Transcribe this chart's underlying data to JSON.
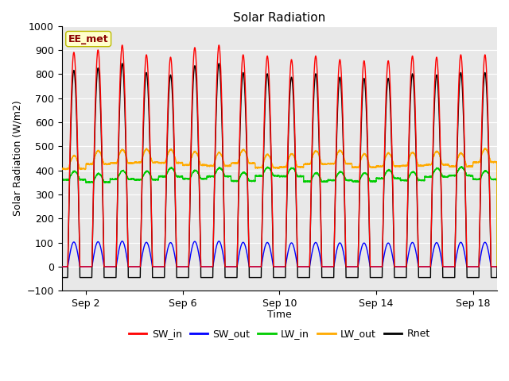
{
  "title": "Solar Radiation",
  "xlabel": "Time",
  "ylabel": "Solar Radiation (W/m2)",
  "ylim": [
    -100,
    1000
  ],
  "yticks": [
    -100,
    0,
    100,
    200,
    300,
    400,
    500,
    600,
    700,
    800,
    900,
    1000
  ],
  "xtick_labels": [
    "Sep 2",
    "Sep 6",
    "Sep 10",
    "Sep 14",
    "Sep 18"
  ],
  "xtick_positions": [
    1,
    5,
    9,
    13,
    17
  ],
  "station_label": "EE_met",
  "background_color": "#e8e8e8",
  "lines": {
    "SW_in": {
      "color": "#ff0000",
      "lw": 1.0
    },
    "SW_out": {
      "color": "#0000ff",
      "lw": 1.0
    },
    "LW_in": {
      "color": "#00cc00",
      "lw": 1.0
    },
    "LW_out": {
      "color": "#ffaa00",
      "lw": 1.0
    },
    "Rnet": {
      "color": "#000000",
      "lw": 1.0
    }
  },
  "n_days": 18,
  "points_per_day": 144,
  "LW_in_base": 370,
  "LW_in_amp": 35,
  "LW_out_base": 415,
  "LW_out_amp": 55,
  "Rnet_night": -45,
  "figsize": [
    6.4,
    4.8
  ],
  "dpi": 100
}
